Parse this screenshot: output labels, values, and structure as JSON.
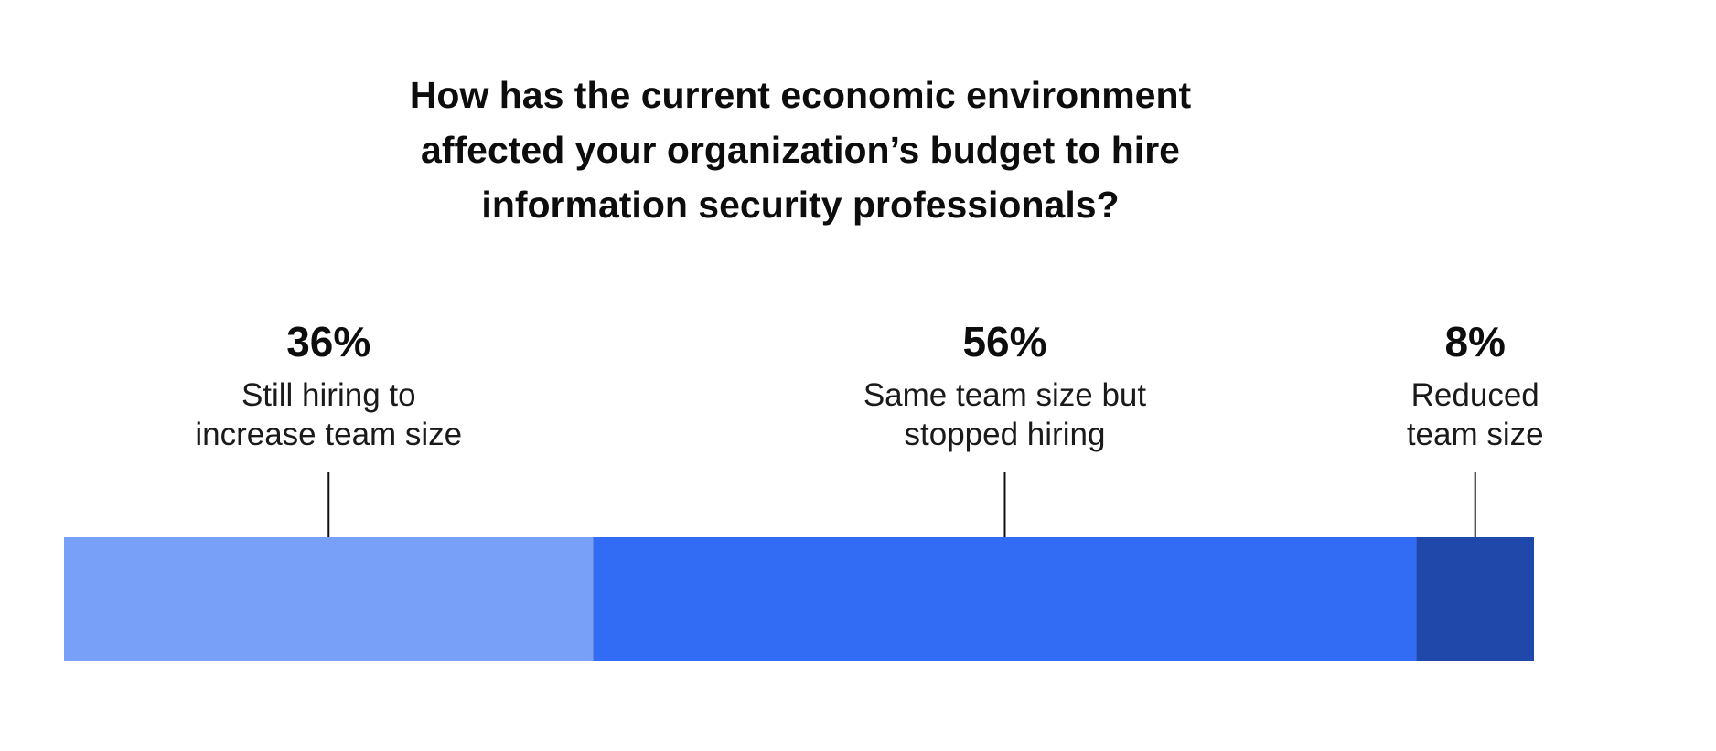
{
  "chart_data": {
    "type": "bar",
    "title_lines": [
      "How has the current economic environment",
      "affected your organization’s budget to hire",
      "information security professionals?"
    ],
    "stacked": true,
    "orientation": "horizontal",
    "xlim": [
      0,
      100
    ],
    "grid": false,
    "legend": "none",
    "segments": [
      {
        "value": 36,
        "value_label": "36%",
        "label_lines": [
          "Still hiring to",
          "increase team size"
        ],
        "color": "#78a0f8"
      },
      {
        "value": 56,
        "value_label": "56%",
        "label_lines": [
          "Same team size but",
          "stopped hiring"
        ],
        "color": "#336cf4"
      },
      {
        "value": 8,
        "value_label": "8%",
        "label_lines": [
          "Reduced",
          "team size"
        ],
        "color": "#1f48aa"
      }
    ]
  }
}
